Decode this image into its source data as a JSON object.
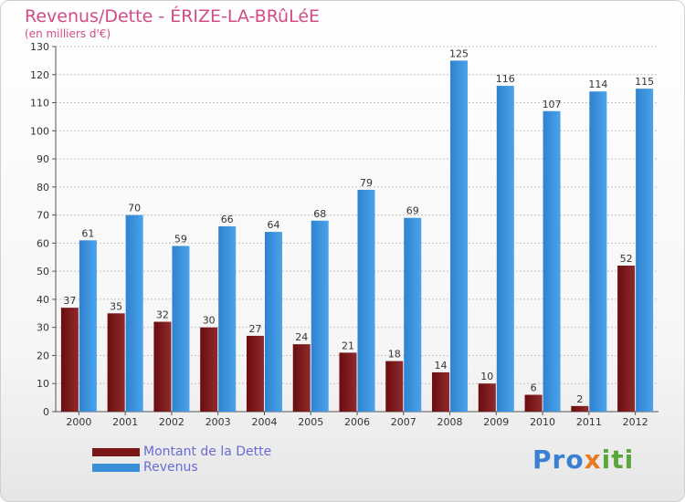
{
  "header": {
    "title": "Revenus/Dette - ÉRIZE-LA-BRûLéE",
    "subtitle": "(en milliers d'€)"
  },
  "legend": {
    "items": [
      {
        "label": "Montant de la Dette",
        "color": "#7a1518"
      },
      {
        "label": "Revenus",
        "color": "#3a8fd9"
      }
    ]
  },
  "brand": {
    "parts": [
      "Pro",
      "x",
      "iti"
    ]
  },
  "chart_data": {
    "type": "bar",
    "title": "Revenus/Dette - ÉRIZE-LA-BRûLéE",
    "subtitle": "(en milliers d'€)",
    "categories": [
      "2000",
      "2001",
      "2002",
      "2003",
      "2004",
      "2005",
      "2006",
      "2007",
      "2008",
      "2009",
      "2010",
      "2011",
      "2012"
    ],
    "series": [
      {
        "name": "Montant de la Dette",
        "color": "#7a1518",
        "values": [
          37,
          35,
          32,
          30,
          27,
          24,
          21,
          18,
          14,
          10,
          6,
          2,
          52
        ]
      },
      {
        "name": "Revenus",
        "color": "#3a8fd9",
        "values": [
          61,
          70,
          59,
          66,
          64,
          68,
          79,
          69,
          125,
          116,
          107,
          114,
          115
        ]
      }
    ],
    "ylim": [
      0,
      130
    ],
    "yticks": [
      0,
      10,
      20,
      30,
      40,
      50,
      60,
      70,
      80,
      90,
      100,
      110,
      120,
      130
    ],
    "grid": true,
    "legend_position": "bottom-left",
    "data_labels": true
  }
}
